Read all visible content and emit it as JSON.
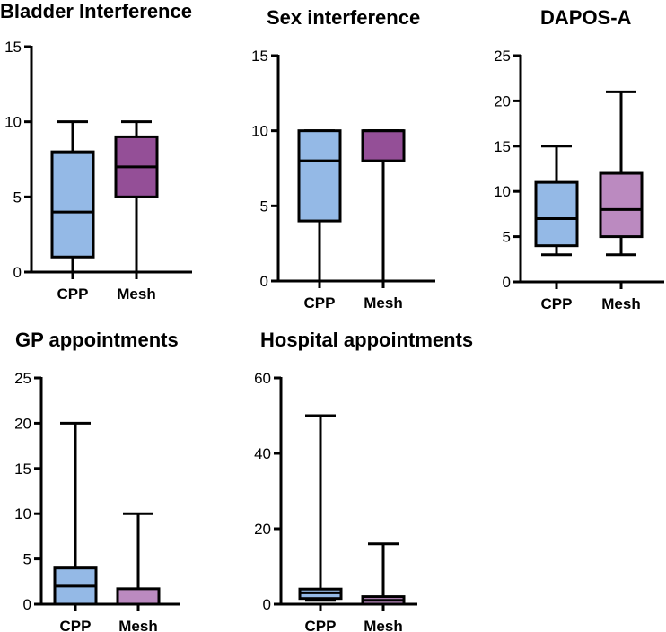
{
  "colors": {
    "cpp": "#94B9E6",
    "mesh_dark": "#944F97",
    "mesh_light": "#BB8AC0",
    "stroke": "#000000"
  },
  "chart_data": [
    {
      "type": "box",
      "title": "Bladder Interference",
      "categories": [
        "CPP",
        "Mesh"
      ],
      "ylim": [
        0,
        15
      ],
      "yticks": [
        0,
        5,
        10,
        15
      ],
      "series": [
        {
          "name": "CPP",
          "min": 0,
          "q1": 1,
          "median": 4,
          "q3": 8,
          "max": 10,
          "color": "#94B9E6"
        },
        {
          "name": "Mesh",
          "min": 0,
          "q1": 5,
          "median": 7,
          "q3": 9,
          "max": 10,
          "color": "#944F97"
        }
      ]
    },
    {
      "type": "box",
      "title": "Sex interference",
      "categories": [
        "CPP",
        "Mesh"
      ],
      "ylim": [
        0,
        15
      ],
      "yticks": [
        0,
        5,
        10,
        15
      ],
      "series": [
        {
          "name": "CPP",
          "min": 0,
          "q1": 4,
          "median": 8,
          "q3": 10,
          "max": 10,
          "color": "#94B9E6"
        },
        {
          "name": "Mesh",
          "min": 0,
          "q1": 8,
          "median": 10,
          "q3": 10,
          "max": 10,
          "color": "#944F97"
        }
      ]
    },
    {
      "type": "box",
      "title": "DAPOS-A",
      "categories": [
        "CPP",
        "Mesh"
      ],
      "ylim": [
        0,
        25
      ],
      "yticks": [
        0,
        5,
        10,
        15,
        20,
        25
      ],
      "series": [
        {
          "name": "CPP",
          "min": 3,
          "q1": 4,
          "median": 7,
          "q3": 11,
          "max": 15,
          "color": "#94B9E6"
        },
        {
          "name": "Mesh",
          "min": 3,
          "q1": 5,
          "median": 8,
          "q3": 12,
          "max": 21,
          "color": "#BB8AC0"
        }
      ]
    },
    {
      "type": "box",
      "title": "GP appointments",
      "categories": [
        "CPP",
        "Mesh"
      ],
      "ylim": [
        0,
        25
      ],
      "yticks": [
        0,
        5,
        10,
        15,
        20,
        25
      ],
      "series": [
        {
          "name": "CPP",
          "min": 0,
          "q1": 0,
          "median": 2,
          "q3": 4,
          "max": 20,
          "color": "#94B9E6"
        },
        {
          "name": "Mesh",
          "min": 0,
          "q1": 0,
          "median": 0,
          "q3": 1.7,
          "max": 10,
          "color": "#BB8AC0"
        }
      ]
    },
    {
      "type": "box",
      "title": "Hospital appointments",
      "categories": [
        "CPP",
        "Mesh"
      ],
      "ylim": [
        0,
        60
      ],
      "yticks": [
        0,
        20,
        40,
        60
      ],
      "series": [
        {
          "name": "CPP",
          "min": 1,
          "q1": 1.5,
          "median": 3,
          "q3": 4,
          "max": 50,
          "color": "#94B9E6"
        },
        {
          "name": "Mesh",
          "min": 0,
          "q1": 0,
          "median": 1,
          "q3": 2,
          "max": 16,
          "color": "#BB8AC0"
        }
      ]
    }
  ]
}
